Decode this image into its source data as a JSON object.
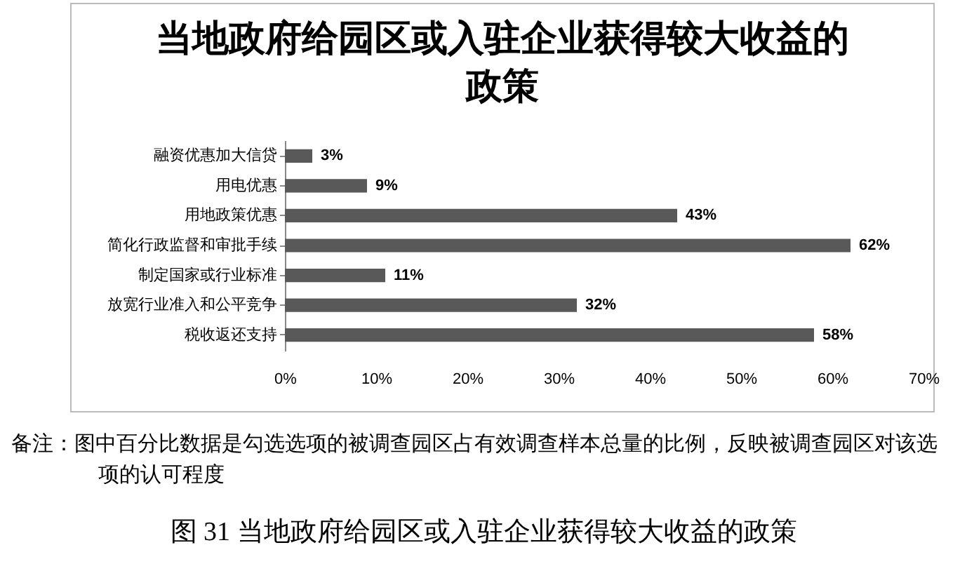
{
  "chart_data": {
    "type": "bar",
    "orientation": "horizontal",
    "title": "当地政府给园区或入驻企业获得较大收益的政策",
    "categories": [
      "融资优惠加大信贷",
      "用电优惠",
      "用地政策优惠",
      "简化行政监督和审批手续",
      "制定国家或行业标准",
      "放宽行业准入和公平竞争",
      "税收返还支持"
    ],
    "values": [
      3,
      9,
      43,
      62,
      11,
      32,
      58
    ],
    "value_labels": [
      "3%",
      "9%",
      "43%",
      "62%",
      "11%",
      "32%",
      "58%"
    ],
    "color": "#595959",
    "xlim": [
      0,
      70
    ],
    "xticks": [
      {
        "value": 0,
        "label": "0%"
      },
      {
        "value": 10,
        "label": "10%"
      },
      {
        "value": 20,
        "label": "20%"
      },
      {
        "value": 30,
        "label": "30%"
      },
      {
        "value": 40,
        "label": "40%"
      },
      {
        "value": 50,
        "label": "50%"
      },
      {
        "value": 60,
        "label": "60%"
      },
      {
        "value": 70,
        "label": "70%"
      }
    ],
    "grid": false,
    "annotations": [
      "备注：图中百分比数据是勾选选项的被调查园区占有效调查样本总量的比例，反映被调查园区对该选项的认可程度",
      "图 31  当地政府给园区或入驻企业获得较大收益的政策"
    ]
  }
}
